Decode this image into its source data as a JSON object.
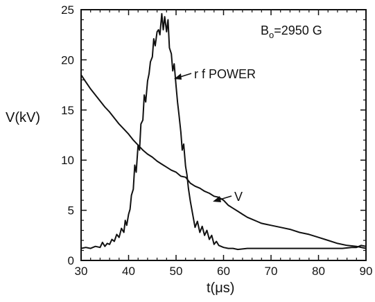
{
  "chart_data": {
    "type": "line",
    "xlabel": "t(μs)",
    "ylabel": "V(kV)",
    "xlim": [
      30,
      90
    ],
    "ylim": [
      0,
      25
    ],
    "x_ticks": [
      30,
      40,
      50,
      60,
      70,
      80,
      90
    ],
    "y_ticks": [
      0,
      5,
      10,
      15,
      20,
      25
    ],
    "grid": false,
    "annotations": [
      {
        "label_prefix": "B",
        "subscript": "o",
        "label_rest": "=2950 G"
      },
      {
        "text": "r f POWER",
        "points_to": "rf"
      },
      {
        "text": "V",
        "points_to": "V"
      }
    ],
    "series": [
      {
        "id": "rf",
        "color": "#111111",
        "x": [
          30,
          31,
          32,
          33,
          34,
          34.5,
          35,
          35.5,
          36,
          36.5,
          37,
          37.5,
          38,
          38.5,
          39,
          39.3,
          39.6,
          40,
          40.3,
          40.6,
          41,
          41.3,
          41.6,
          42,
          42.3,
          42.6,
          43,
          43.3,
          43.6,
          44,
          44.3,
          44.6,
          45,
          45.3,
          45.6,
          46,
          46.3,
          46.6,
          47,
          47.3,
          47.6,
          48,
          48.3,
          48.6,
          49,
          49.3,
          49.6,
          50,
          50.3,
          50.6,
          51,
          51.3,
          51.6,
          52,
          52.3,
          52.6,
          53,
          53.5,
          54,
          54.5,
          55,
          55.5,
          56,
          56.5,
          57,
          57.5,
          58,
          58.5,
          59,
          60,
          61,
          62,
          63,
          65,
          70,
          75,
          80,
          85,
          87,
          88,
          89,
          90
        ],
        "y": [
          1.2,
          1.3,
          1.2,
          1.4,
          1.3,
          1.8,
          1.4,
          1.7,
          1.6,
          2.1,
          1.9,
          2.6,
          2.3,
          3.2,
          2.8,
          4.0,
          3.5,
          4.6,
          5.1,
          6.5,
          7.1,
          9.5,
          8.8,
          11.5,
          11.0,
          13.6,
          14.0,
          16.5,
          15.8,
          17.9,
          18.6,
          19.8,
          20.3,
          22.1,
          21.4,
          22.8,
          23.0,
          22.5,
          24.6,
          23.0,
          24.3,
          22.8,
          24.0,
          21.2,
          20.6,
          18.9,
          19.6,
          17.4,
          15.8,
          14.6,
          12.8,
          11.0,
          11.6,
          9.4,
          8.5,
          7.2,
          5.9,
          4.6,
          3.3,
          3.9,
          2.8,
          3.4,
          2.5,
          3.0,
          2.1,
          2.5,
          1.6,
          1.9,
          1.5,
          1.3,
          1.2,
          1.2,
          1.1,
          1.2,
          1.2,
          1.2,
          1.2,
          1.2,
          1.3,
          1.3,
          1.5,
          1.4
        ]
      },
      {
        "id": "V",
        "color": "#111111",
        "x": [
          30,
          31,
          32,
          33,
          34,
          35,
          36,
          37,
          38,
          39,
          40,
          41,
          42,
          43,
          44,
          45,
          46,
          47,
          48,
          49,
          50,
          51,
          52,
          53,
          54,
          55,
          56,
          57,
          58,
          59,
          60,
          61,
          62,
          63,
          64,
          65,
          66,
          67,
          68,
          69,
          70,
          72,
          74,
          76,
          78,
          80,
          82,
          84,
          86,
          88,
          90
        ],
        "y": [
          18.5,
          17.8,
          17.1,
          16.5,
          15.9,
          15.3,
          14.8,
          14.2,
          13.6,
          13.1,
          12.6,
          12.0,
          11.5,
          11.0,
          10.6,
          10.3,
          9.9,
          9.6,
          9.3,
          9.0,
          8.8,
          8.4,
          8.3,
          7.7,
          7.4,
          7.2,
          6.9,
          6.7,
          6.4,
          6.3,
          6.0,
          5.5,
          5.2,
          4.9,
          4.6,
          4.3,
          4.1,
          3.9,
          3.7,
          3.6,
          3.5,
          3.3,
          3.1,
          2.8,
          2.6,
          2.3,
          2.0,
          1.7,
          1.5,
          1.4,
          1.2
        ]
      }
    ]
  }
}
